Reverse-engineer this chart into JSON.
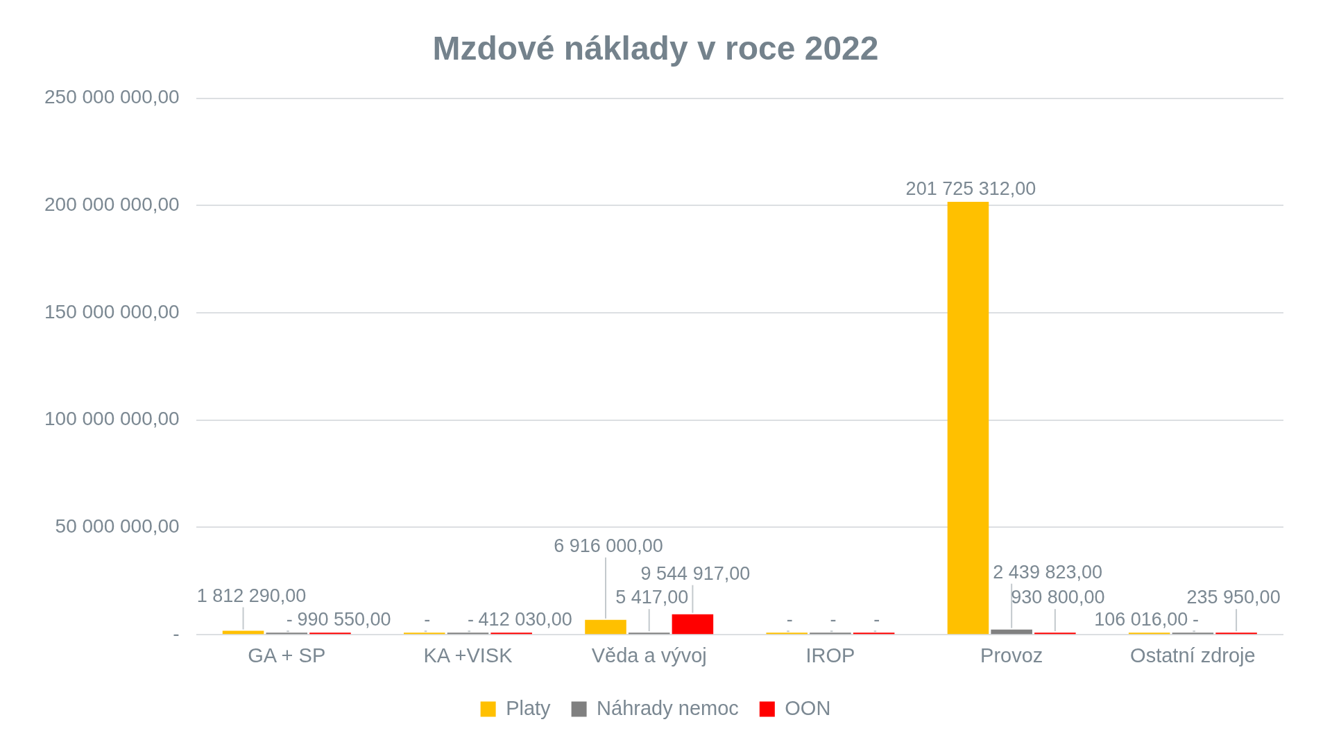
{
  "chart_data": {
    "type": "bar",
    "title": "Mzdové náklady v roce 2022",
    "categories": [
      "GA + SP",
      "KA +VISK",
      "Věda a vývoj",
      "IROP",
      "Provoz",
      "Ostatní zdroje"
    ],
    "series": [
      {
        "name": "Platy",
        "color": "#ffc000",
        "values": [
          1812290,
          0,
          6916000,
          0,
          201725312,
          106016
        ],
        "value_labels": [
          "1 812 290,00",
          "-",
          "6 916 000,00",
          "-",
          "201 725 312,00",
          "106 016,00"
        ]
      },
      {
        "name": "Náhrady nemoc",
        "color": "#808080",
        "values": [
          0,
          0,
          5417,
          0,
          2439823,
          0
        ],
        "value_labels": [
          "-",
          "-",
          "5 417,00",
          "-",
          "2 439 823,00",
          "-"
        ]
      },
      {
        "name": "OON",
        "color": "#ff0000",
        "values": [
          990550,
          412030,
          9544917,
          0,
          930800,
          235950
        ],
        "value_labels": [
          "990 550,00",
          "412 030,00",
          "9 544 917,00",
          "-",
          "930 800,00",
          "235 950,00"
        ]
      }
    ],
    "ylim": [
      0,
      250000000
    ],
    "yticks": [
      {
        "value": 0,
        "label": "-"
      },
      {
        "value": 50000000,
        "label": "50 000 000,00"
      },
      {
        "value": 100000000,
        "label": "100 000 000,00"
      },
      {
        "value": 150000000,
        "label": "150 000 000,00"
      },
      {
        "value": 200000000,
        "label": "200 000 000,00"
      },
      {
        "value": 250000000,
        "label": "250 000 000,00"
      }
    ],
    "grid": "y",
    "legend": "bottom"
  }
}
